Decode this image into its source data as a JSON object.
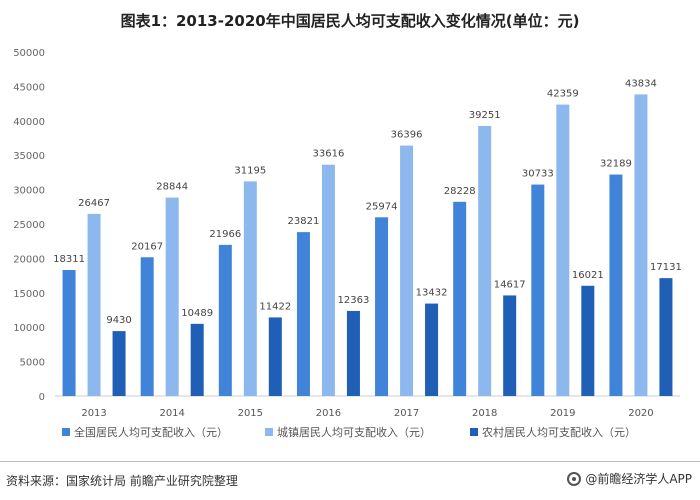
{
  "title": "图表1：2013-2020年中国居民人均可支配收入变化情况(单位：元)",
  "source": "资料来源：国家统计局 前瞻产业研究院整理",
  "brand": "@前瞻经济学人APP",
  "chart_data": {
    "type": "bar",
    "categories": [
      "2013",
      "2014",
      "2015",
      "2016",
      "2017",
      "2018",
      "2019",
      "2020"
    ],
    "series": [
      {
        "name": "全国居民人均可支配收入（元）",
        "color": "#3f84d8",
        "values": [
          18311,
          20167,
          21966,
          23821,
          25974,
          28228,
          30733,
          32189
        ]
      },
      {
        "name": "城镇居民人均可支配收入（元）",
        "color": "#8db8ee",
        "values": [
          26467,
          28844,
          31195,
          33616,
          36396,
          39251,
          42359,
          43834
        ]
      },
      {
        "name": "农村居民人均可支配收入（元）",
        "color": "#1f5fb5",
        "values": [
          9430,
          10489,
          11422,
          12363,
          13432,
          14617,
          16021,
          17131
        ]
      }
    ],
    "yticks": [
      0,
      5000,
      10000,
      15000,
      20000,
      25000,
      30000,
      35000,
      40000,
      45000,
      50000
    ],
    "ylim": [
      0,
      50000
    ],
    "grid": false,
    "legend": "bottom"
  }
}
